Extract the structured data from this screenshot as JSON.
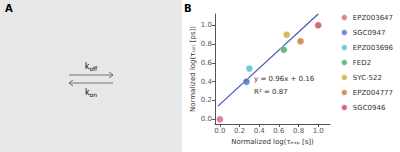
{
  "chart_data": {
    "type": "scatter",
    "xlabel": "Normalized log(τₑₓₚ [s])",
    "ylabel": "Normalized log(τₜₐₗₜ [ps])",
    "xlim": [
      -0.05,
      1.12
    ],
    "ylim": [
      -0.05,
      1.12
    ],
    "xticks": [
      {
        "value": 0.0,
        "label": "0.0"
      },
      0.2,
      0.4,
      0.6,
      0.8,
      {
        "value": 1.0,
        "label": "1.0"
      }
    ],
    "yticks": [
      {
        "value": 0.0,
        "label": "0.0"
      },
      0.2,
      0.4,
      0.6,
      0.8,
      {
        "value": 1.0,
        "label": "1.0"
      }
    ],
    "grid": false,
    "legend": "right",
    "annotations": [
      {
        "text": "A"
      },
      {
        "text": "B"
      },
      {
        "text": "y = 0.96x + 0.16"
      },
      {
        "text": "R² = 0.87"
      },
      {
        "text": "k",
        "subscript": "off"
      },
      {
        "text": "k",
        "subscript": "on"
      }
    ],
    "series": [
      {
        "type": "line",
        "color": "#4455bb",
        "x": [
          -0.02,
          1.0
        ],
        "y": [
          0.14,
          1.12
        ]
      },
      {
        "type": "scatter",
        "name": "EPZ003647",
        "color": "#d9607a",
        "x": [
          0.0
        ],
        "y": [
          0.0
        ]
      },
      {
        "type": "scatter",
        "name": "SGC0947",
        "color": "#5566cc",
        "x": [
          0.27
        ],
        "y": [
          0.4
        ]
      },
      {
        "type": "scatter",
        "name": "EPZ003696",
        "color": "#55bbcc",
        "x": [
          0.3
        ],
        "y": [
          0.54
        ]
      },
      {
        "type": "scatter",
        "name": "FED2",
        "color": "#44aa66",
        "x": [
          0.65
        ],
        "y": [
          0.74
        ]
      },
      {
        "type": "scatter",
        "name": "SYC-522",
        "color": "#ccaa33",
        "x": [
          0.68
        ],
        "y": [
          0.9
        ]
      },
      {
        "type": "scatter",
        "name": "EPZ004777",
        "color": "#cc7733",
        "x": [
          0.82
        ],
        "y": [
          0.83
        ]
      },
      {
        "type": "scatter",
        "name": "SGC0946",
        "color": "#cc4455",
        "x": [
          1.0
        ],
        "y": [
          1.0
        ]
      }
    ]
  }
}
